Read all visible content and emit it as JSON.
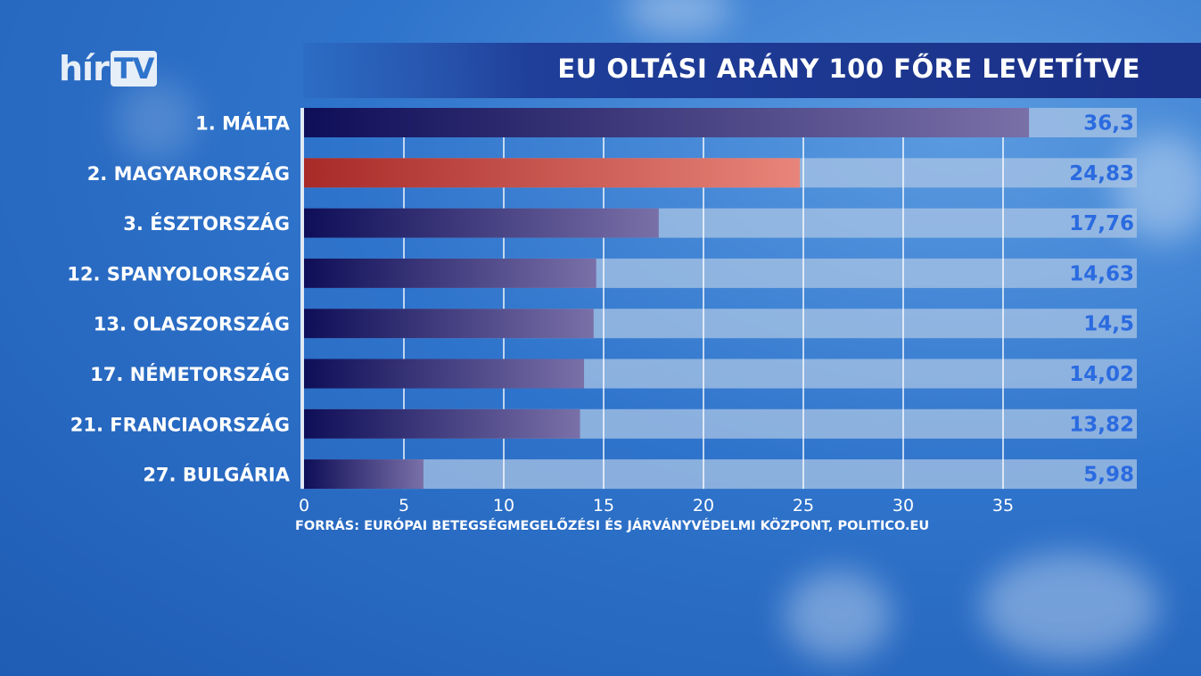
{
  "logo": "hírTV",
  "chart_data": {
    "type": "bar",
    "orientation": "horizontal",
    "title": "EU OLTÁSI ARÁNY 100 FŐRE LEVETÍTVE",
    "categories": [
      "1. MÁLTA",
      "2. MAGYARORSZÁG",
      "3. ÉSZTORSZÁG",
      "12. SPANYOLORSZÁG",
      "13. OLASZORSZÁG",
      "17. NÉMETORSZÁG",
      "21. FRANCIAORSZÁG",
      "27. BULGÁRIA"
    ],
    "values": [
      36.3,
      24.83,
      17.76,
      14.63,
      14.5,
      14.02,
      13.82,
      5.98
    ],
    "value_labels": [
      "36,3",
      "24,83",
      "17,76",
      "14,63",
      "14,5",
      "14,02",
      "13,82",
      "5,98"
    ],
    "highlight_index": 1,
    "xlim": [
      0,
      38
    ],
    "xticks": [
      0,
      5,
      10,
      15,
      20,
      25,
      30,
      35
    ],
    "grid": true,
    "colors": {
      "bar": "#12125e",
      "highlight": "#b0302e",
      "track": "#a9c4e4",
      "value_text": "#2b6be0"
    },
    "source": "FORRÁS: EURÓPAI BETEGSÉGMEGELŐZÉSI ÉS JÁRVÁNYVÉDELMI KÖZPONT, POLITICO.EU"
  }
}
